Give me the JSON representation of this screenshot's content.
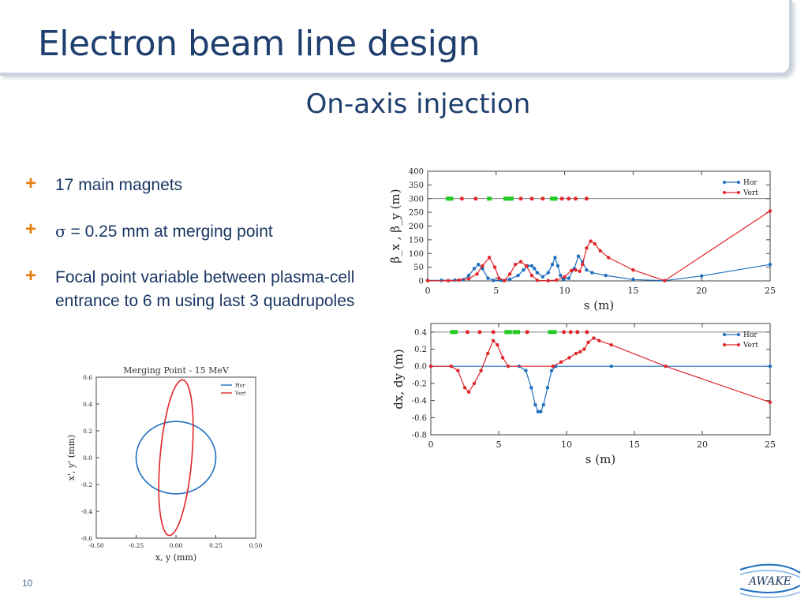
{
  "slide": {
    "title": "Electron beam line design",
    "subtitle": "On-axis injection",
    "page_number": "10",
    "logo_text": "AWAKE"
  },
  "bullets": [
    {
      "text": "17 main magnets"
    },
    {
      "sigma": "σ",
      "text": " = 0.25 mm at merging point"
    },
    {
      "text": "Focal point variable between plasma-cell entrance to 6 m using last 3 quadrupoles"
    }
  ],
  "colors": {
    "hor": "#1f6fc0",
    "vert": "#e0262a",
    "magnet_green": "#22cc22",
    "magnet_red": "#e0262a"
  },
  "chart_data": [
    {
      "id": "beta",
      "type": "line",
      "xlabel": "s (m)",
      "ylabel": "β_x , β_y (m)",
      "xlim": [
        0,
        25
      ],
      "ylim": [
        0,
        400
      ],
      "xticks": [
        "0",
        "5",
        "10",
        "15",
        "20",
        "25"
      ],
      "yticks": [
        "0",
        "50",
        "100",
        "150",
        "200",
        "250",
        "300",
        "350",
        "400"
      ],
      "legend": [
        "Hor",
        "Vert"
      ],
      "legend_position": "top-right",
      "magnet_line_y": 300,
      "magnets_green": [
        1.5,
        1.7,
        4.5,
        5.7,
        5.9,
        6.1,
        9.1,
        9.3
      ],
      "magnets_red": [
        2.5,
        3.5,
        6.8,
        7.6,
        8.4,
        9.8,
        10.3,
        10.8,
        11.6
      ],
      "series": [
        {
          "name": "Hor",
          "points": [
            [
              0,
              2
            ],
            [
              1,
              2
            ],
            [
              2,
              3
            ],
            [
              2.6,
              5
            ],
            [
              3.0,
              20
            ],
            [
              3.4,
              45
            ],
            [
              3.7,
              60
            ],
            [
              4.0,
              45
            ],
            [
              4.4,
              10
            ],
            [
              4.8,
              2
            ],
            [
              5.4,
              2
            ],
            [
              6.0,
              6
            ],
            [
              6.6,
              20
            ],
            [
              7.0,
              40
            ],
            [
              7.3,
              55
            ],
            [
              7.6,
              55
            ],
            [
              7.8,
              45
            ],
            [
              8.0,
              30
            ],
            [
              8.4,
              15
            ],
            [
              8.8,
              30
            ],
            [
              9.1,
              60
            ],
            [
              9.3,
              85
            ],
            [
              9.5,
              55
            ],
            [
              9.7,
              20
            ],
            [
              9.9,
              5
            ],
            [
              10.3,
              10
            ],
            [
              10.7,
              45
            ],
            [
              11.0,
              90
            ],
            [
              11.3,
              70
            ],
            [
              11.6,
              40
            ],
            [
              12.0,
              30
            ],
            [
              13.0,
              20
            ],
            [
              15.0,
              5
            ],
            [
              17.3,
              1
            ],
            [
              20,
              18
            ],
            [
              25,
              60
            ]
          ]
        },
        {
          "name": "Vert",
          "points": [
            [
              0,
              1
            ],
            [
              1.5,
              1
            ],
            [
              2.3,
              3
            ],
            [
              3.0,
              8
            ],
            [
              3.6,
              25
            ],
            [
              4.0,
              55
            ],
            [
              4.5,
              85
            ],
            [
              4.9,
              50
            ],
            [
              5.2,
              10
            ],
            [
              5.6,
              1
            ],
            [
              6.0,
              25
            ],
            [
              6.4,
              60
            ],
            [
              6.8,
              70
            ],
            [
              7.2,
              55
            ],
            [
              7.6,
              20
            ],
            [
              8.0,
              2
            ],
            [
              8.8,
              1
            ],
            [
              9.4,
              3
            ],
            [
              10.0,
              15
            ],
            [
              10.5,
              38
            ],
            [
              10.8,
              40
            ],
            [
              11.1,
              35
            ],
            [
              11.3,
              60
            ],
            [
              11.6,
              120
            ],
            [
              11.9,
              145
            ],
            [
              12.2,
              135
            ],
            [
              12.6,
              110
            ],
            [
              13.2,
              85
            ],
            [
              15.0,
              40
            ],
            [
              17.3,
              1
            ],
            [
              25,
              255
            ]
          ]
        }
      ]
    },
    {
      "id": "disp",
      "type": "line",
      "xlabel": "s (m)",
      "ylabel": "dx, dy (m)",
      "xlim": [
        0,
        25
      ],
      "ylim": [
        -0.8,
        0.5
      ],
      "xticks": [
        "0",
        "5",
        "10",
        "15",
        "20",
        "25"
      ],
      "yticks": [
        "0.4",
        "0.2",
        "0.0",
        "-0.2",
        "-0.4",
        "-0.6",
        "-0.8"
      ],
      "legend": [
        "Hor",
        "Vert"
      ],
      "legend_position": "top-right",
      "magnet_line_y": 0.4,
      "magnets_green": [
        1.6,
        1.8,
        5.6,
        5.8,
        6.2,
        6.4,
        8.8,
        9.1
      ],
      "magnets_red": [
        2.7,
        3.6,
        4.6,
        7.1,
        9.8,
        10.3,
        10.8,
        11.5
      ],
      "series": [
        {
          "name": "Hor",
          "points": [
            [
              0,
              0
            ],
            [
              1.5,
              0
            ],
            [
              6.5,
              0
            ],
            [
              7.0,
              -0.05
            ],
            [
              7.4,
              -0.25
            ],
            [
              7.7,
              -0.45
            ],
            [
              7.9,
              -0.53
            ],
            [
              8.1,
              -0.53
            ],
            [
              8.3,
              -0.45
            ],
            [
              8.6,
              -0.25
            ],
            [
              8.9,
              -0.05
            ],
            [
              9.2,
              0
            ],
            [
              13.3,
              0
            ],
            [
              25,
              0
            ]
          ]
        },
        {
          "name": "Vert",
          "points": [
            [
              0,
              0
            ],
            [
              1.5,
              0
            ],
            [
              2.0,
              -0.05
            ],
            [
              2.5,
              -0.25
            ],
            [
              2.8,
              -0.3
            ],
            [
              3.2,
              -0.2
            ],
            [
              3.7,
              -0.05
            ],
            [
              4.2,
              0.15
            ],
            [
              4.6,
              0.3
            ],
            [
              4.9,
              0.25
            ],
            [
              5.3,
              0.1
            ],
            [
              5.7,
              0
            ],
            [
              9.0,
              0
            ],
            [
              9.6,
              0.05
            ],
            [
              10.2,
              0.1
            ],
            [
              10.7,
              0.15
            ],
            [
              11.0,
              0.17
            ],
            [
              11.3,
              0.2
            ],
            [
              11.6,
              0.28
            ],
            [
              12.0,
              0.33
            ],
            [
              12.4,
              0.3
            ],
            [
              13.3,
              0.25
            ],
            [
              17.3,
              0
            ],
            [
              25,
              -0.42
            ]
          ]
        }
      ]
    },
    {
      "id": "merge",
      "type": "line",
      "title": "Merging Point - 15 MeV",
      "xlabel": "x, y (mm)",
      "ylabel": "x', y' (mm)",
      "xlim": [
        -0.5,
        0.5
      ],
      "ylim": [
        -0.6,
        0.6
      ],
      "xticks": [
        "-0.50",
        "-0.25",
        "0.00",
        "0.25",
        "0.50"
      ],
      "yticks": [
        "0.6",
        "0.4",
        "0.2",
        "0.0",
        "-0.2",
        "-0.4",
        "-0.6"
      ],
      "legend": [
        "Hor",
        "Vert"
      ],
      "legend_position": "top-right",
      "series": [
        {
          "name": "Hor",
          "ellipse": {
            "cx": 0,
            "cy": 0,
            "a": 0.25,
            "b": 0.27,
            "tilt": 0
          }
        },
        {
          "name": "Vert",
          "ellipse": {
            "cx": 0,
            "cy": 0,
            "a": 0.1,
            "b": 0.58,
            "tilt": 0.2
          }
        }
      ]
    }
  ]
}
